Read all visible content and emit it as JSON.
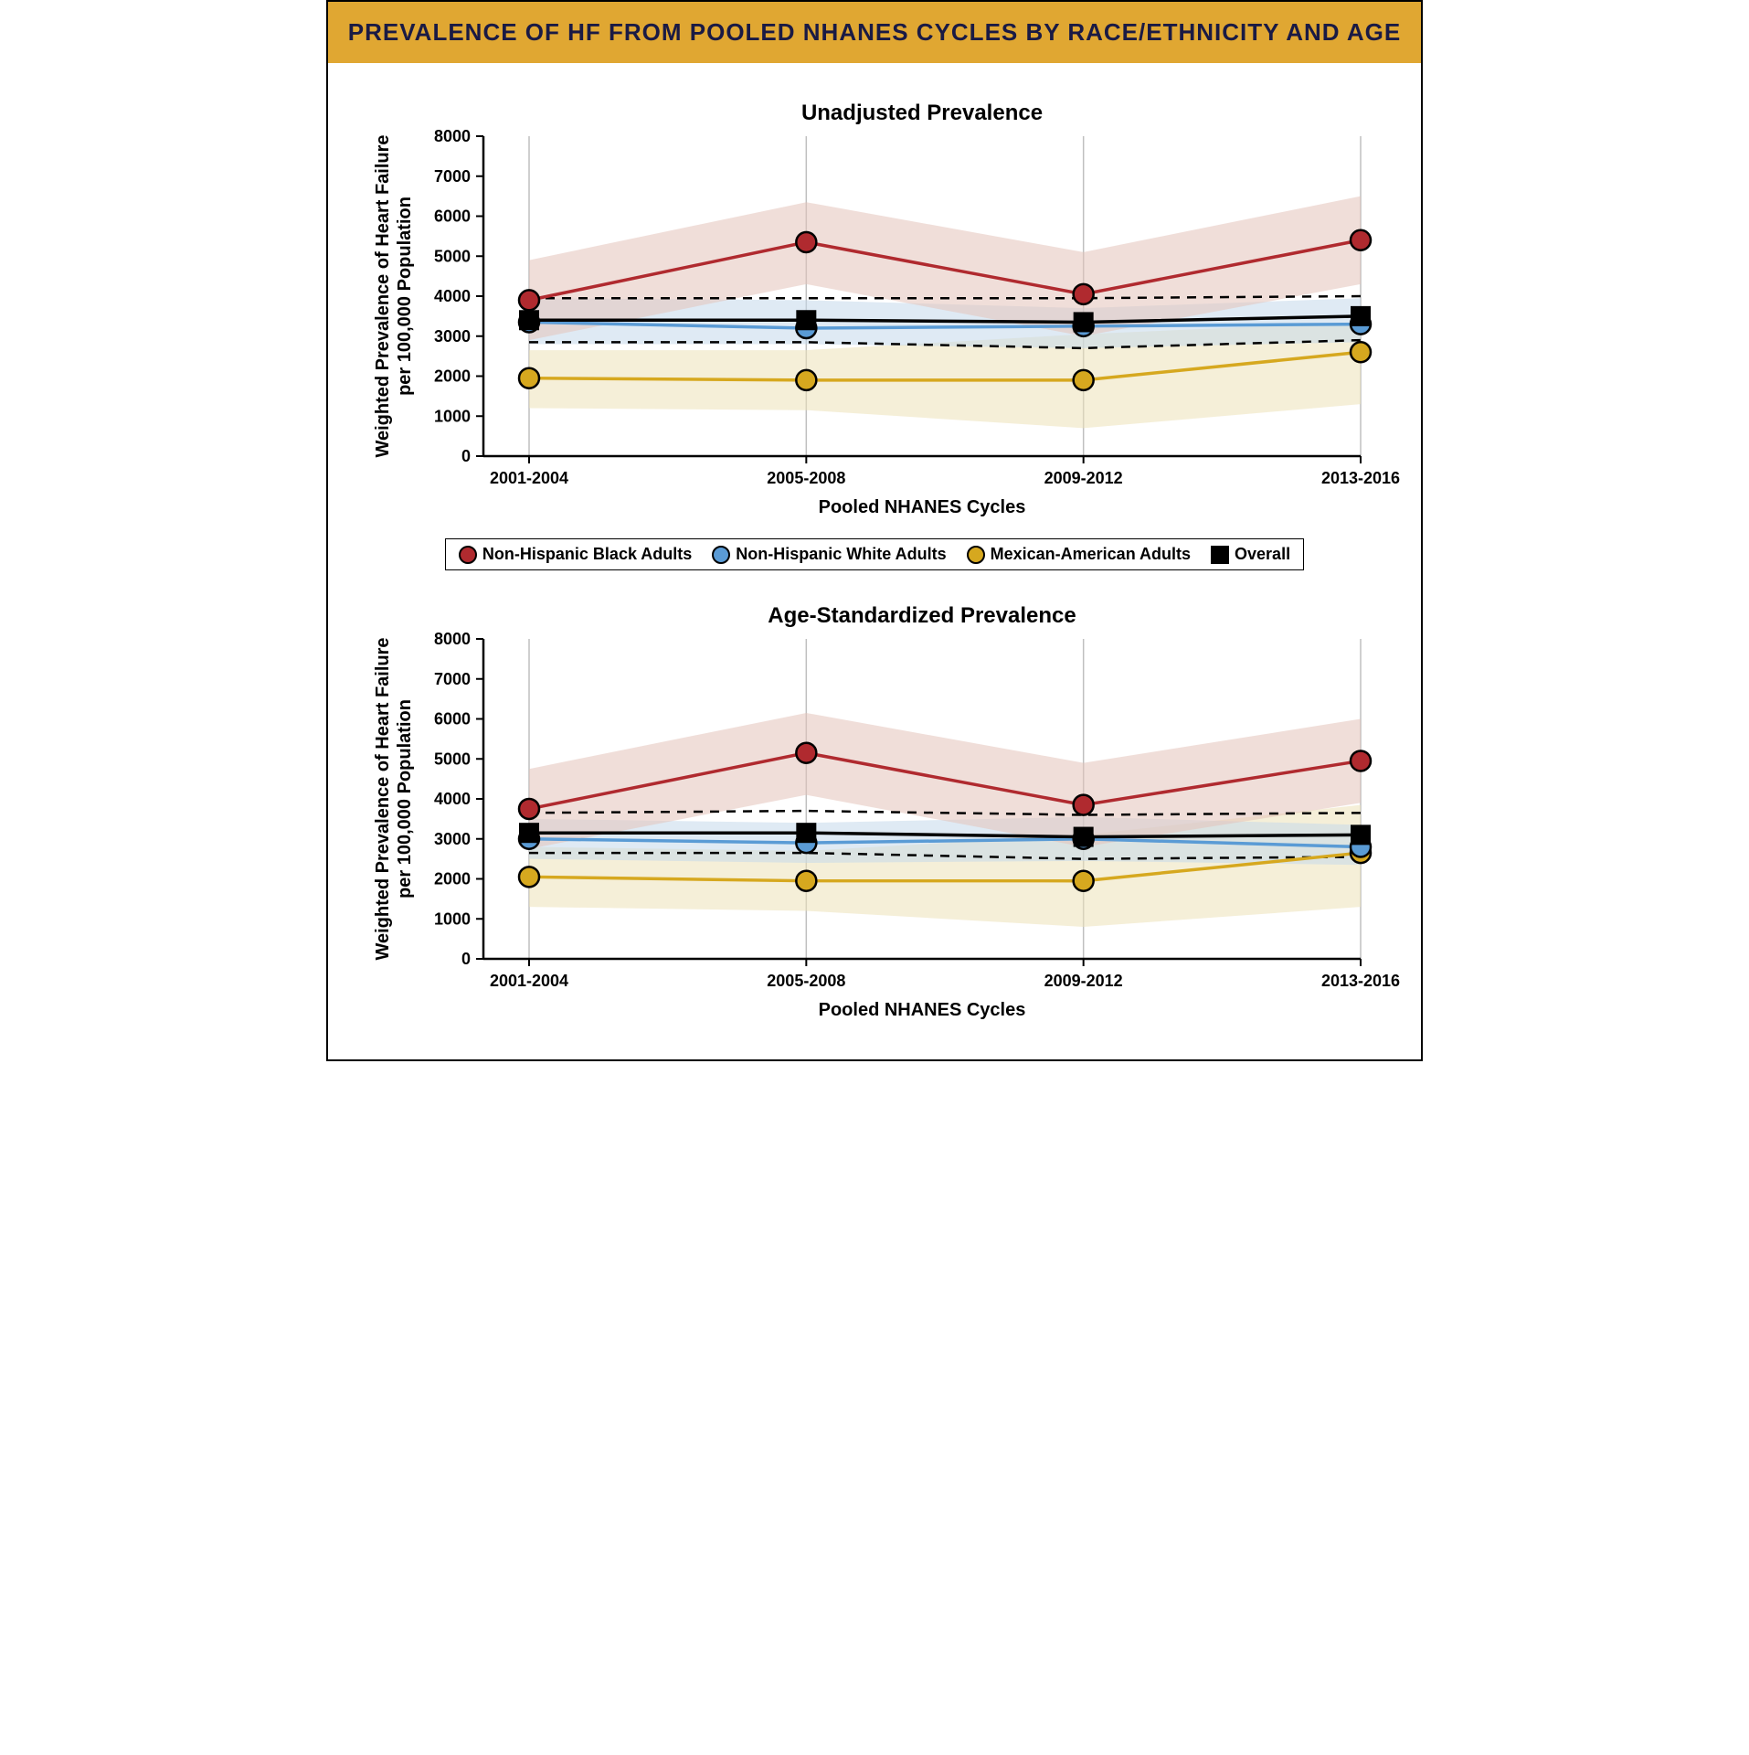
{
  "title": "PREVALENCE OF HF FROM POOLED NHANES CYCLES BY RACE/ETHNICITY AND AGE",
  "xlabel": "Pooled NHANES Cycles",
  "ylabel": "Weighted Prevalence of Heart Failure per 100,000 Population",
  "xticks": [
    "2001-2004",
    "2005-2008",
    "2009-2012",
    "2013-2016"
  ],
  "yticks": [
    0,
    1000,
    2000,
    3000,
    4000,
    5000,
    6000,
    7000,
    8000
  ],
  "ylim": [
    0,
    8000
  ],
  "colors": {
    "black": {
      "line": "#b02a2f",
      "fill": "#e4c2b9"
    },
    "white": {
      "line": "#5a9bd5",
      "fill": "#c5d9eb"
    },
    "mexican": {
      "line": "#d6a81f",
      "fill": "#ede2b8"
    },
    "overall": {
      "line": "#000000"
    },
    "grid": "#bfbfbf",
    "axis": "#000000",
    "overall_ci": "#808080"
  },
  "legend": [
    {
      "label": "Non-Hispanic Black Adults",
      "type": "circle",
      "color": "#b02a2f"
    },
    {
      "label": "Non-Hispanic White Adults",
      "type": "circle",
      "color": "#5a9bd5"
    },
    {
      "label": "Mexican-American Adults",
      "type": "circle",
      "color": "#d6a81f"
    },
    {
      "label": "Overall",
      "type": "square",
      "color": "#000000"
    }
  ],
  "charts": [
    {
      "subtitle": "Unadjusted Prevalence",
      "series": {
        "black": {
          "y": [
            3900,
            5350,
            4050,
            5400
          ],
          "lo": [
            2900,
            4300,
            3000,
            4300
          ],
          "hi": [
            4900,
            6350,
            5100,
            6500
          ]
        },
        "white": {
          "y": [
            3350,
            3200,
            3250,
            3300
          ],
          "lo": [
            2800,
            2800,
            2700,
            2850
          ],
          "hi": [
            3950,
            3900,
            3700,
            3950
          ]
        },
        "mexican": {
          "y": [
            1950,
            1900,
            1900,
            2600
          ],
          "lo": [
            1200,
            1150,
            700,
            1300
          ],
          "hi": [
            2650,
            2650,
            3050,
            3350
          ]
        },
        "overall": {
          "y": [
            3400,
            3400,
            3350,
            3500
          ],
          "lo": [
            2850,
            2850,
            2700,
            2900
          ],
          "hi": [
            3950,
            3950,
            3950,
            4000
          ]
        }
      }
    },
    {
      "subtitle": "Age-Standardized Prevalence",
      "series": {
        "black": {
          "y": [
            3750,
            5150,
            3850,
            4950
          ],
          "lo": [
            2750,
            4100,
            2800,
            3900
          ],
          "hi": [
            4750,
            6150,
            4900,
            6000
          ]
        },
        "white": {
          "y": [
            3000,
            2900,
            3000,
            2800
          ],
          "lo": [
            2500,
            2400,
            2450,
            2350
          ],
          "hi": [
            3500,
            3400,
            3550,
            3350
          ]
        },
        "mexican": {
          "y": [
            2050,
            1950,
            1950,
            2650
          ],
          "lo": [
            1300,
            1200,
            800,
            1300
          ],
          "hi": [
            2800,
            2700,
            3100,
            3850
          ]
        },
        "overall": {
          "y": [
            3150,
            3150,
            3050,
            3100
          ],
          "lo": [
            2650,
            2650,
            2500,
            2550
          ],
          "hi": [
            3650,
            3700,
            3600,
            3650
          ]
        }
      }
    }
  ],
  "style": {
    "title_fontsize": 26,
    "subtitle_fontsize": 24,
    "axis_label_fontsize": 20,
    "tick_fontsize": 18,
    "legend_fontsize": 18,
    "line_width": 3.5,
    "marker_radius": 11,
    "marker_stroke": 2.5,
    "dash": "10,8"
  }
}
